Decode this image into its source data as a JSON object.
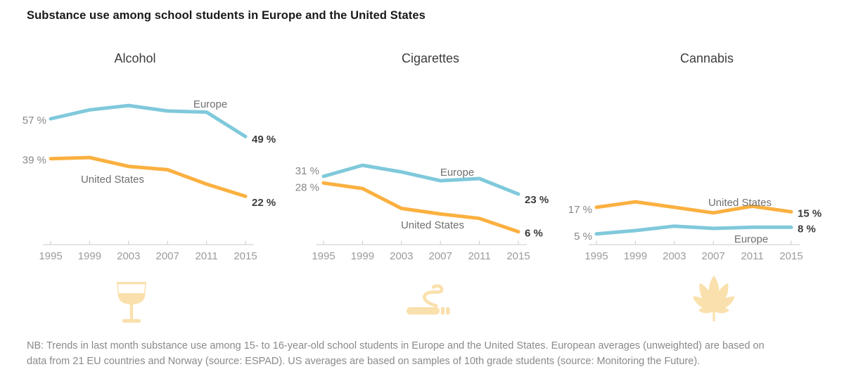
{
  "title": "Substance use among school students in Europe and the United States",
  "note": {
    "line1": "NB: Trends in last month substance use among 15- to 16-year-old school students in Europe and the United States. European averages (unweighted) are based on",
    "line2": "data from 21 EU countries and Norway (source: ESPAD). US averages are based on samples of 10th grade students (source: Monitoring the Future)."
  },
  "colors": {
    "europe": "#7FC9DB",
    "united_states": "#FBB040",
    "icon": "#FAE0AC",
    "axis": "#cbcbcb"
  },
  "chart_data": [
    {
      "type": "line",
      "title": "Alcohol",
      "icon": "wine-glass",
      "x": [
        1995,
        1999,
        2003,
        2007,
        2011,
        2015
      ],
      "ylim": [
        0,
        70
      ],
      "grid": false,
      "legend": "inline-labels",
      "series": [
        {
          "name": "Europe",
          "color": "europe",
          "values": [
            57,
            61,
            63,
            60.5,
            60,
            49
          ],
          "start_label": "57 %",
          "end_label": "49 %"
        },
        {
          "name": "United States",
          "color": "united_states",
          "values": [
            39,
            39.5,
            35.5,
            34,
            27.5,
            22
          ],
          "start_label": "39 %",
          "end_label": "22 %"
        }
      ]
    },
    {
      "type": "line",
      "title": "Cigarettes",
      "icon": "cigarette",
      "x": [
        1995,
        1999,
        2003,
        2007,
        2011,
        2015
      ],
      "ylim": [
        0,
        70
      ],
      "grid": false,
      "legend": "inline-labels",
      "series": [
        {
          "name": "Europe",
          "color": "europe",
          "values": [
            31,
            36,
            33,
            29,
            30,
            23
          ],
          "start_label": "31 %",
          "end_label": "23 %"
        },
        {
          "name": "United States",
          "color": "united_states",
          "values": [
            28,
            25.5,
            16.5,
            14,
            12,
            6
          ],
          "start_label": "28 %",
          "end_label": "6 %"
        }
      ]
    },
    {
      "type": "line",
      "title": "Cannabis",
      "icon": "cannabis-leaf",
      "x": [
        1995,
        1999,
        2003,
        2007,
        2011,
        2015
      ],
      "ylim": [
        0,
        70
      ],
      "grid": false,
      "legend": "inline-labels",
      "series": [
        {
          "name": "United States",
          "color": "united_states",
          "values": [
            17,
            19.5,
            17,
            14.5,
            17.5,
            15
          ],
          "start_label": "17 %",
          "end_label": "15 %"
        },
        {
          "name": "Europe",
          "color": "europe",
          "values": [
            5,
            6.5,
            8.5,
            7.5,
            8,
            8
          ],
          "start_label": "5 %",
          "end_label": "8 %"
        }
      ]
    }
  ]
}
